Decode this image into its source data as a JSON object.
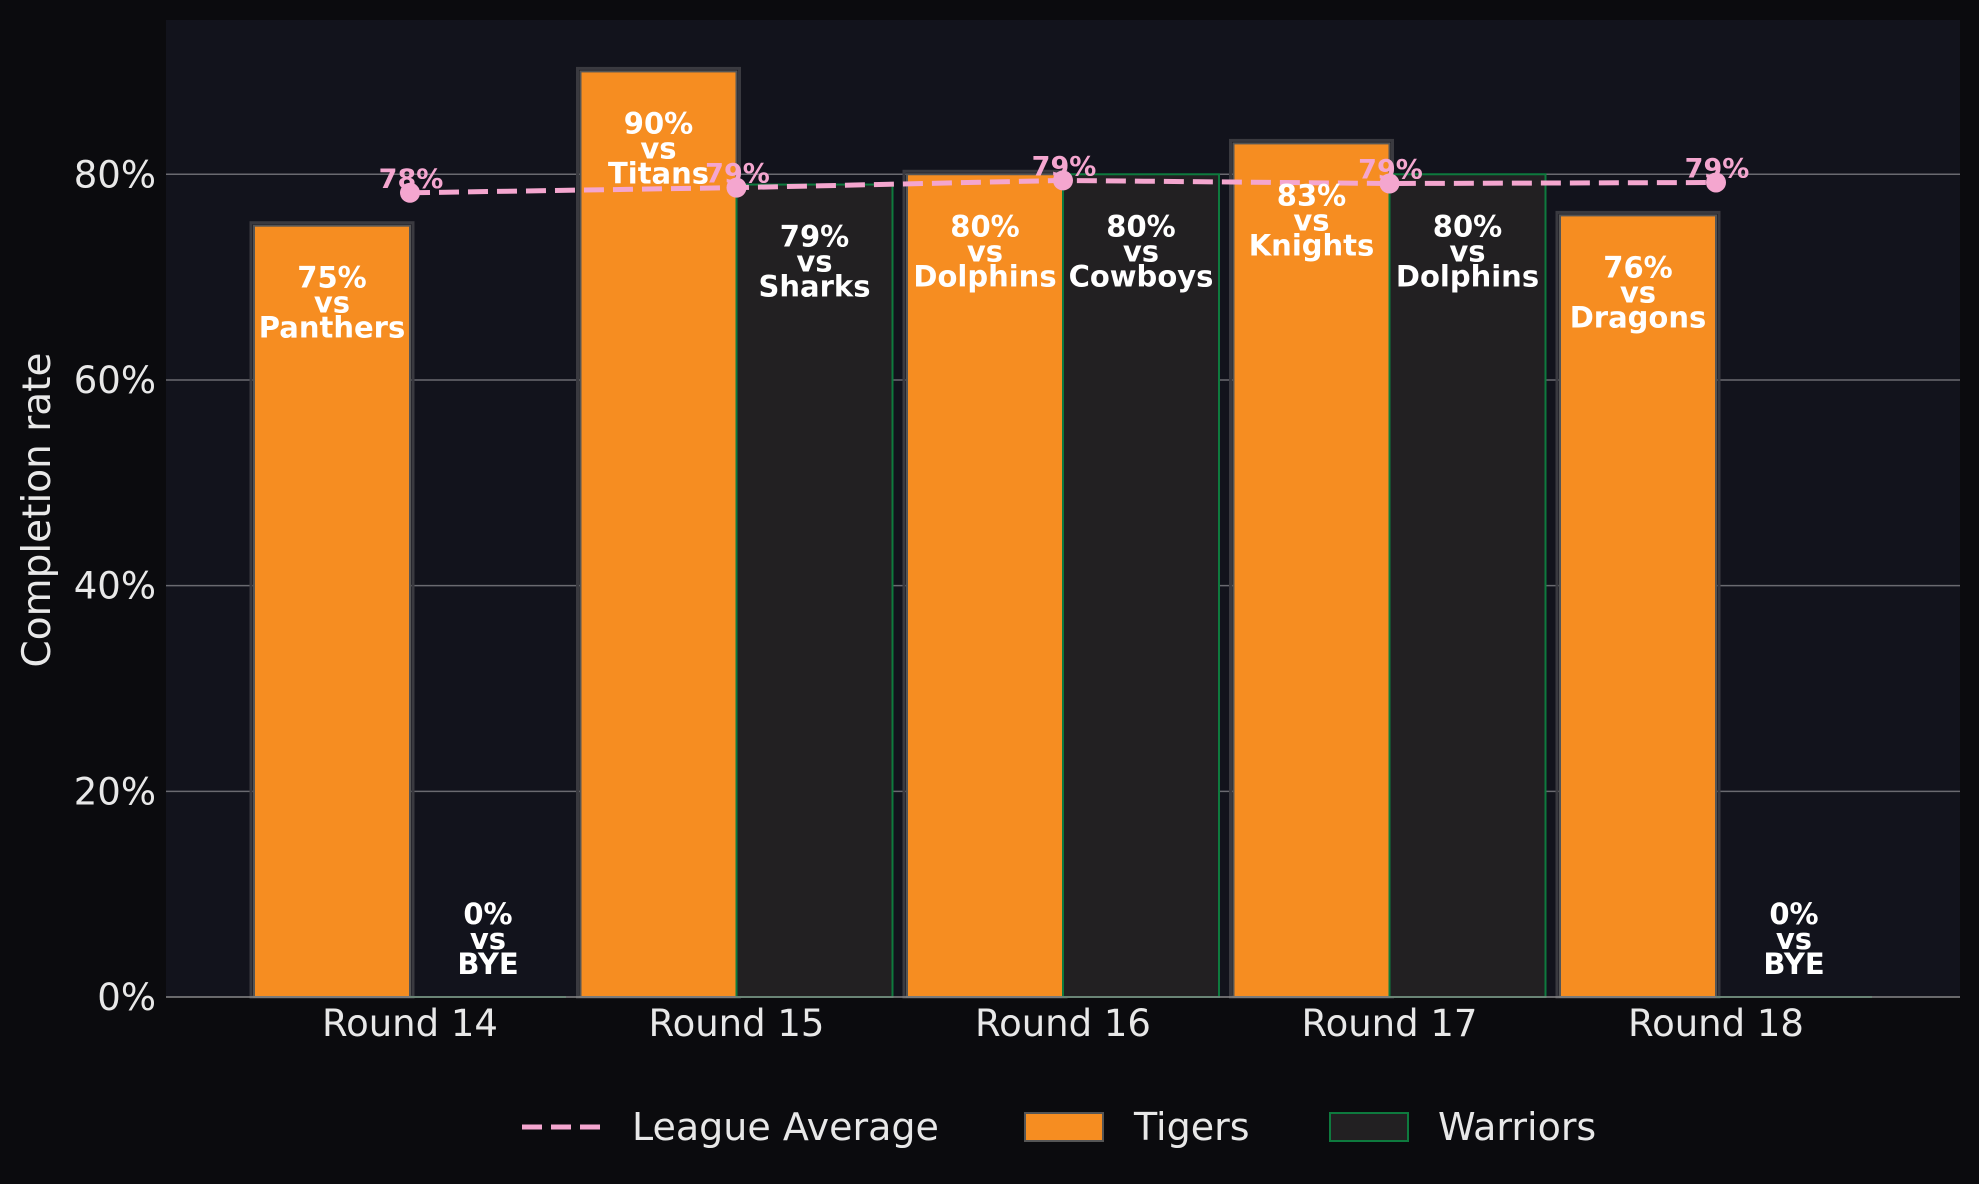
{
  "chart_data": {
    "type": "bar",
    "title": "",
    "xlabel": "",
    "ylabel": "Completion rate",
    "categories": [
      "Round 14",
      "Round 15",
      "Round 16",
      "Round 17",
      "Round 18"
    ],
    "ylim": [
      0,
      95
    ],
    "yticks": [
      0,
      20,
      40,
      60,
      80
    ],
    "ytick_labels": [
      "0%",
      "20%",
      "40%",
      "60%",
      "80%"
    ],
    "grid": "horizontal",
    "legend_position": "bottom-center",
    "series": [
      {
        "name": "Tigers",
        "color": "#f68d21",
        "edge_color": "#555555",
        "values": [
          75,
          90,
          80,
          83,
          76
        ],
        "opponents": [
          "Panthers",
          "Titans",
          "Dolphins",
          "Knights",
          "Dragons"
        ],
        "labels": [
          [
            "75%",
            "vs",
            "Panthers"
          ],
          [
            "90%",
            "vs",
            "Titans"
          ],
          [
            "80%",
            "vs",
            "Dolphins"
          ],
          [
            "83%",
            "vs",
            "Knights"
          ],
          [
            "76%",
            "vs",
            "Dragons"
          ]
        ]
      },
      {
        "name": "Warriors",
        "color": "#222022",
        "edge_color": "#0e7a3e",
        "values": [
          0,
          79,
          80,
          80,
          0
        ],
        "opponents": [
          "BYE",
          "Sharks",
          "Cowboys",
          "Dolphins",
          "BYE"
        ],
        "labels": [
          [
            "0%",
            "vs",
            "BYE"
          ],
          [
            "79%",
            "vs",
            "Sharks"
          ],
          [
            "80%",
            "vs",
            "Cowboys"
          ],
          [
            "80%",
            "vs",
            "Dolphins"
          ],
          [
            "0%",
            "vs",
            "BYE"
          ]
        ]
      }
    ],
    "league_average": {
      "name": "League Average",
      "color": "#f4a6cf",
      "style": "dashed",
      "values": [
        78.2,
        78.7,
        79.4,
        79.1,
        79.2
      ],
      "labels": [
        "78%",
        "79%",
        "79%",
        "79%",
        "79%"
      ]
    },
    "legend": [
      {
        "label": "League Average",
        "kind": "dashed-line",
        "color": "#f4a6cf"
      },
      {
        "label": "Tigers",
        "kind": "patch",
        "color": "#f68d21",
        "edge": "#555555"
      },
      {
        "label": "Warriors",
        "kind": "patch",
        "color": "#222022",
        "edge": "#0e7a3e"
      }
    ]
  }
}
